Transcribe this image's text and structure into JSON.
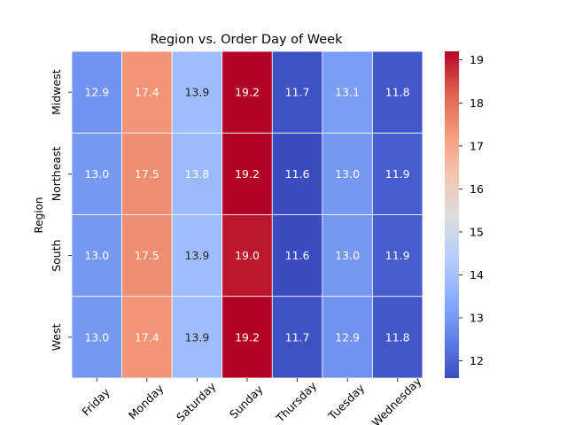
{
  "chart_data": {
    "type": "heatmap",
    "title": "Region vs. Order Day of Week",
    "xlabel": "",
    "ylabel": "Region",
    "x_categories": [
      "Friday",
      "Monday",
      "Saturday",
      "Sunday",
      "Thursday",
      "Tuesday",
      "Wednesday"
    ],
    "y_categories": [
      "Midwest",
      "Northeast",
      "South",
      "West"
    ],
    "values": [
      [
        12.9,
        17.4,
        13.9,
        19.2,
        11.7,
        13.1,
        11.8
      ],
      [
        13.0,
        17.5,
        13.8,
        19.2,
        11.6,
        13.0,
        11.9
      ],
      [
        13.0,
        17.5,
        13.9,
        19.0,
        11.6,
        13.0,
        11.9
      ],
      [
        13.0,
        17.4,
        13.9,
        19.2,
        11.7,
        12.9,
        11.8
      ]
    ],
    "colorbar": {
      "min": 11.6,
      "max": 19.2,
      "ticks": [
        12,
        13,
        14,
        15,
        16,
        17,
        18,
        19
      ],
      "colormap": "coolwarm"
    },
    "annotations": true,
    "value_format": "0.1f",
    "grid": false,
    "cell_border_color": "#ffffff"
  }
}
